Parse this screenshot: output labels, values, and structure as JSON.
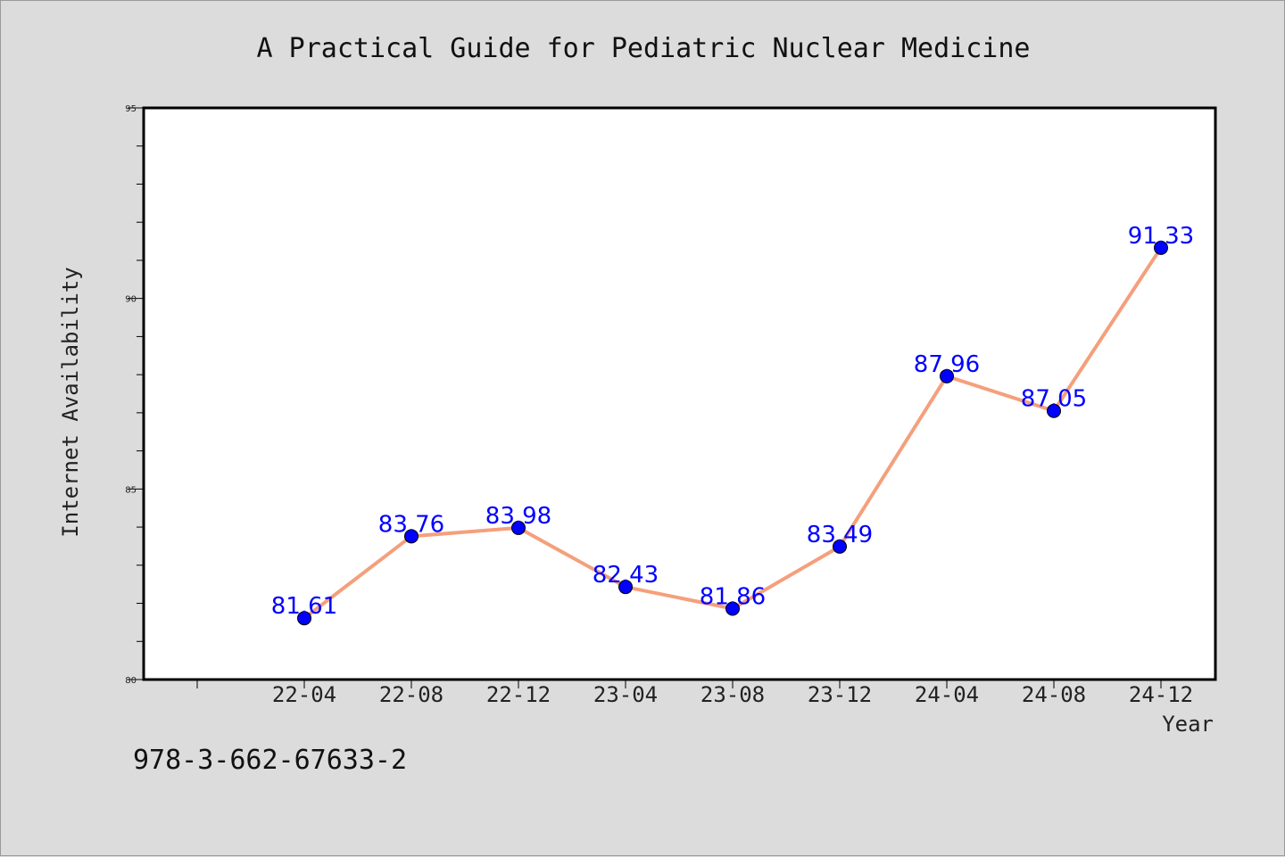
{
  "footer": {
    "isbn": "978-3-662-67633-2"
  },
  "chart_data": {
    "type": "line",
    "title": "A Practical Guide for Pediatric Nuclear Medicine",
    "xlabel": "Year",
    "ylabel": "Internet Availability",
    "categories": [
      "22-04",
      "22-08",
      "22-12",
      "23-04",
      "23-08",
      "23-12",
      "24-04",
      "24-08",
      "24-12"
    ],
    "values": [
      81.61,
      83.76,
      83.98,
      82.43,
      81.86,
      83.49,
      87.96,
      87.05,
      91.33
    ],
    "data_labels": [
      "81.61",
      "83.76",
      "83.98",
      "82.43",
      "81.86",
      "83.49",
      "87.96",
      "87.05",
      "91.33"
    ],
    "ylim": [
      80,
      95
    ],
    "yticks": [
      "80",
      "85",
      "90",
      "95"
    ],
    "grid": false,
    "line_color": "#f4a07c",
    "marker_color": "#0000ff",
    "label_color": "#0000ff",
    "plot_background": "#ffffff",
    "figure_background": "#dcdcdc"
  }
}
